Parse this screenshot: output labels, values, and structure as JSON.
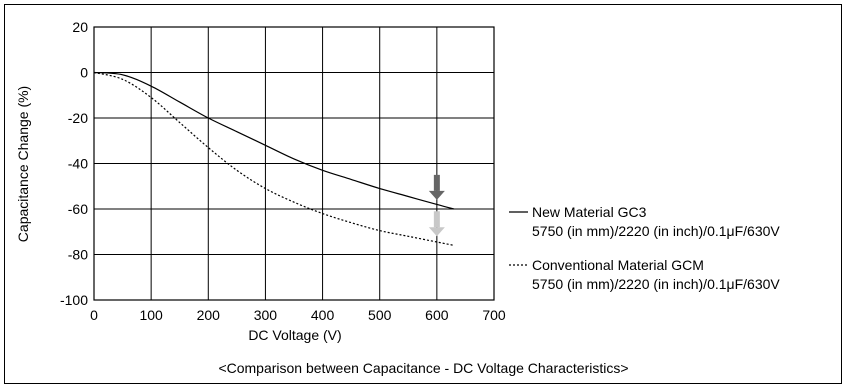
{
  "caption": "<Comparison between Capacitance - DC Voltage Characteristics>",
  "chart_data": {
    "type": "line",
    "title": "",
    "xlabel": "DC Voltage (V)",
    "ylabel": "Capacitance Change (%)",
    "xlim": [
      0,
      700
    ],
    "ylim": [
      -100,
      20
    ],
    "xticks": [
      "0",
      "100",
      "200",
      "300",
      "400",
      "500",
      "600",
      "700"
    ],
    "yticks": [
      "20",
      "0",
      "-20",
      "-40",
      "-60",
      "-80",
      "-100"
    ],
    "grid": true,
    "legend_position": "right",
    "series": [
      {
        "name": "New Material GC3",
        "sublabel": "5750 (in mm)/2220 (in inch)/0.1μF/630V",
        "style": "solid",
        "color": "#000000",
        "points": [
          [
            0,
            0
          ],
          [
            50,
            -1
          ],
          [
            100,
            -6
          ],
          [
            150,
            -13
          ],
          [
            200,
            -20
          ],
          [
            250,
            -26
          ],
          [
            300,
            -32
          ],
          [
            350,
            -38
          ],
          [
            400,
            -43
          ],
          [
            450,
            -47
          ],
          [
            500,
            -51
          ],
          [
            550,
            -54.5
          ],
          [
            600,
            -58
          ],
          [
            630,
            -60
          ]
        ]
      },
      {
        "name": "Conventional Material GCM",
        "sublabel": "5750 (in mm)/2220 (in inch)/0.1μF/630V",
        "style": "dashed",
        "color": "#000000",
        "points": [
          [
            0,
            0
          ],
          [
            50,
            -3
          ],
          [
            100,
            -11
          ],
          [
            150,
            -22
          ],
          [
            200,
            -33
          ],
          [
            250,
            -43
          ],
          [
            300,
            -51
          ],
          [
            350,
            -57
          ],
          [
            400,
            -62
          ],
          [
            450,
            -66
          ],
          [
            500,
            -69.5
          ],
          [
            550,
            -72
          ],
          [
            600,
            -74.5
          ],
          [
            630,
            -76
          ]
        ]
      }
    ],
    "annotations": [
      {
        "type": "arrow-down",
        "x": 600,
        "y_from": -45,
        "y_to": -56,
        "color": "#666666"
      },
      {
        "type": "arrow-down",
        "x": 600,
        "y_from": -61,
        "y_to": -72,
        "color": "#c8c8c8"
      }
    ]
  }
}
